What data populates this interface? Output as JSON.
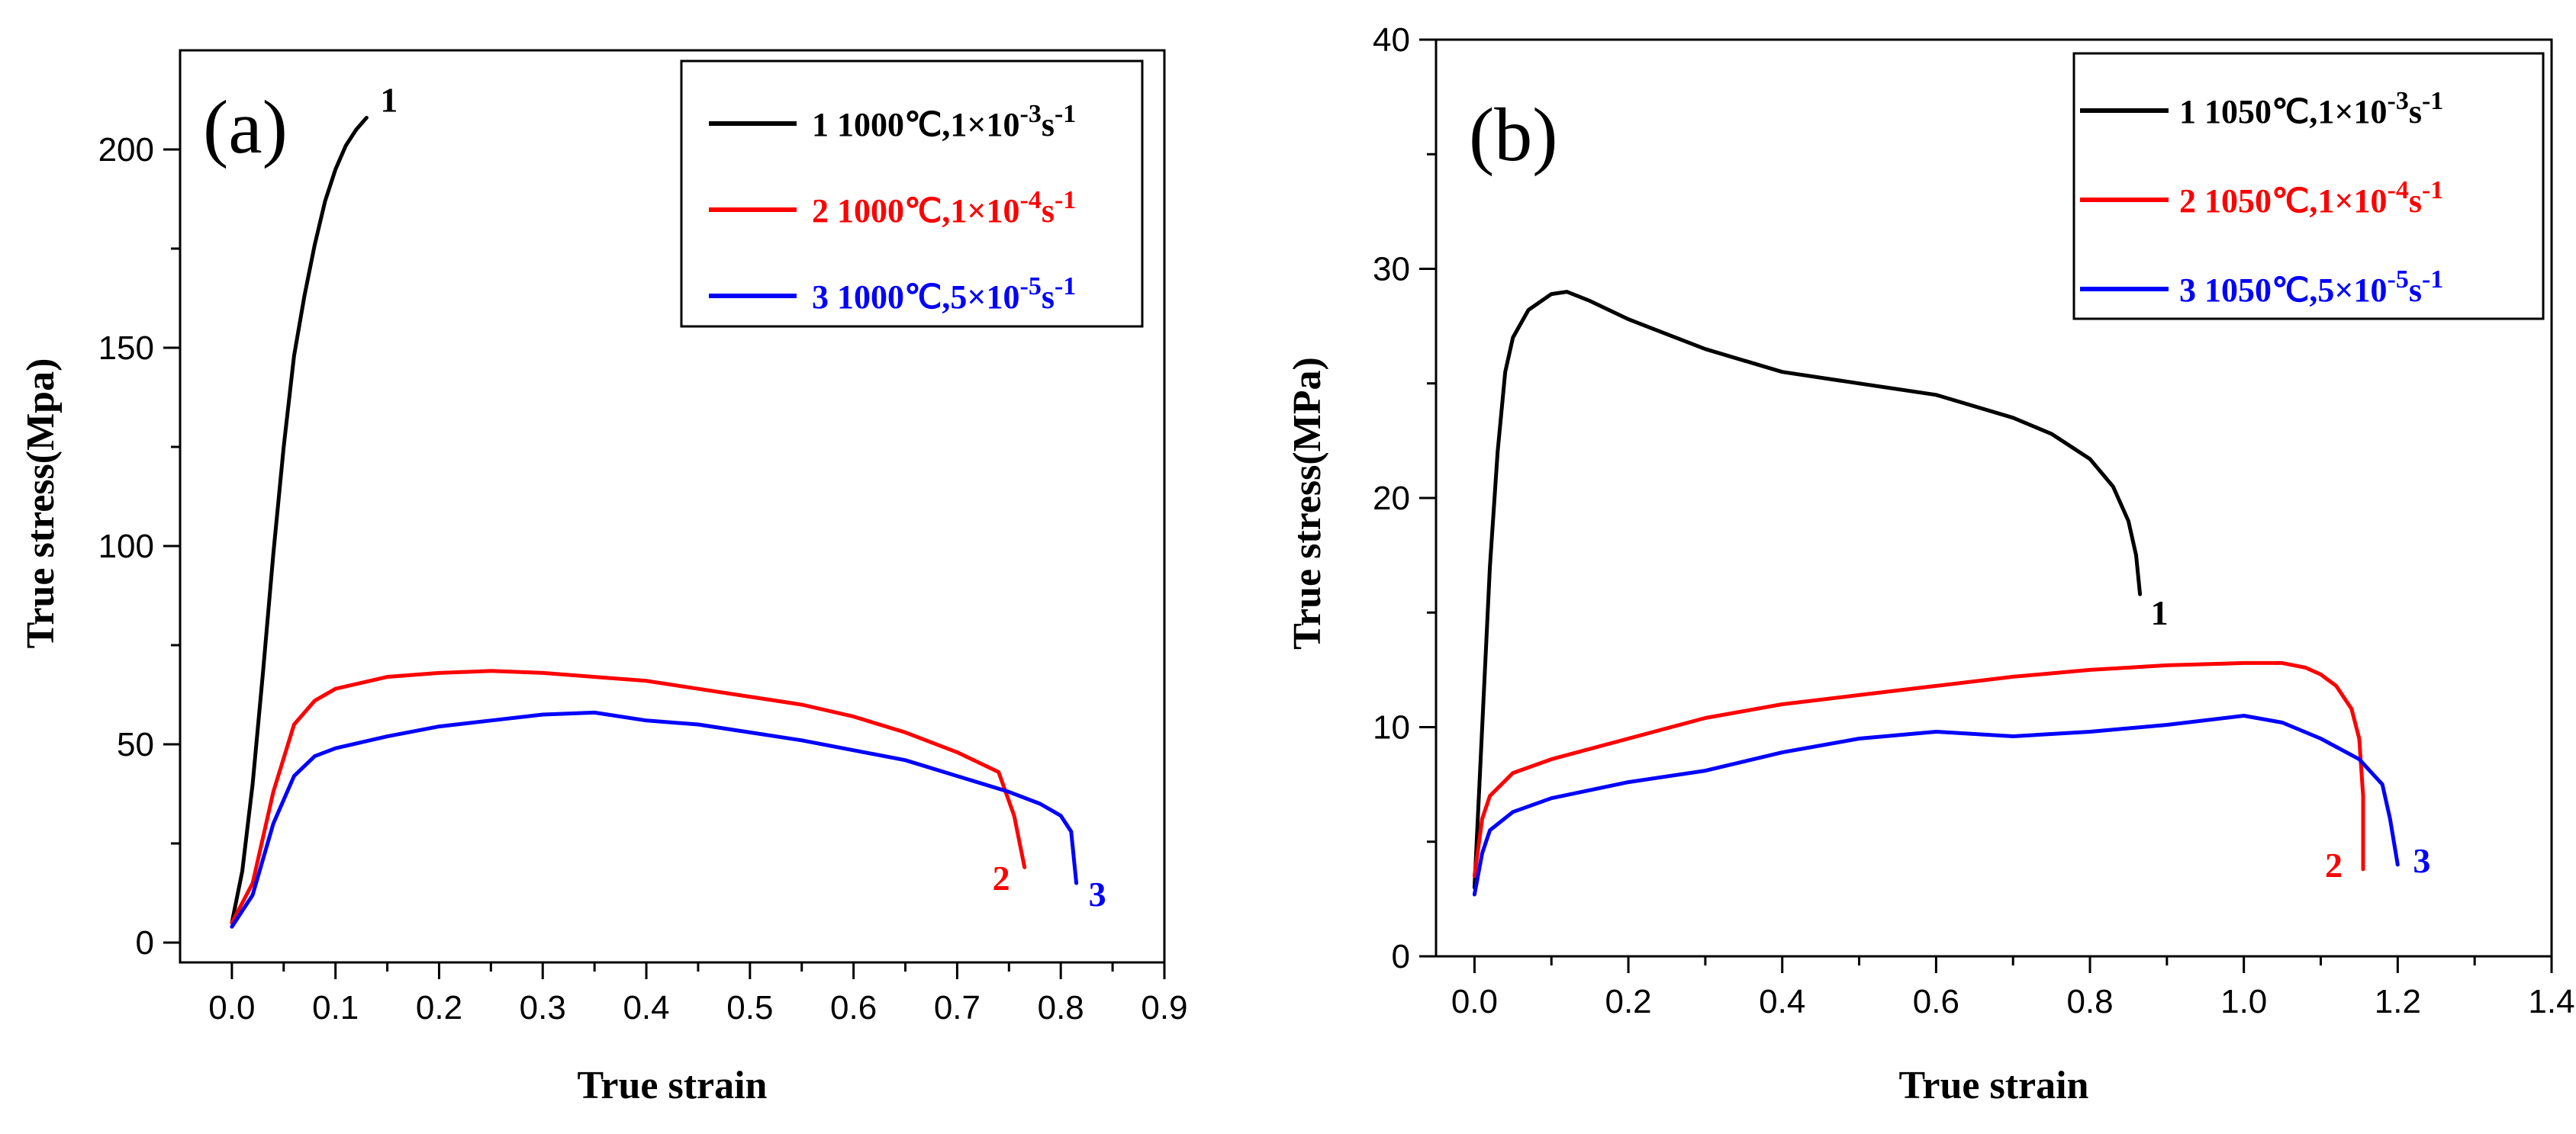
{
  "chart_data": [
    {
      "type": "line",
      "panel_label": "(a)",
      "xlabel": "True strain",
      "ylabel": "True stress(Mpa)",
      "xlim": [
        -0.05,
        0.9
      ],
      "ylim": [
        -5,
        225
      ],
      "x_ticks": [
        0.0,
        0.1,
        0.2,
        0.3,
        0.4,
        0.5,
        0.6,
        0.7,
        0.8,
        0.9
      ],
      "x_tick_labels": [
        "0.0",
        "0.1",
        "0.2",
        "0.3",
        "0.4",
        "0.5",
        "0.6",
        "0.7",
        "0.8",
        "0.9"
      ],
      "y_ticks": [
        0,
        50,
        100,
        150,
        200
      ],
      "y_tick_labels": [
        "0",
        "50",
        "100",
        "150",
        "200"
      ],
      "legend_position": "top-right",
      "series": [
        {
          "name": "1 1000℃,1×10-3s-1",
          "legend_prefix": "1 1000℃,1×10",
          "legend_exp": "-3",
          "legend_mid": "s",
          "legend_suffix": "-1",
          "end_label": "1",
          "color": "#000000",
          "x": [
            0.0,
            0.01,
            0.02,
            0.03,
            0.04,
            0.05,
            0.06,
            0.07,
            0.08,
            0.09,
            0.1,
            0.11,
            0.12,
            0.13
          ],
          "y": [
            5,
            18,
            40,
            68,
            98,
            125,
            148,
            163,
            176,
            187,
            195,
            201,
            205,
            208
          ]
        },
        {
          "name": "2 1000℃,1×10-4s-1",
          "legend_prefix": "2 1000℃,1×10",
          "legend_exp": "-4",
          "legend_mid": "s",
          "legend_suffix": "-1",
          "end_label": "2",
          "color": "#ff0000",
          "x": [
            0.0,
            0.02,
            0.04,
            0.06,
            0.08,
            0.1,
            0.15,
            0.2,
            0.25,
            0.3,
            0.35,
            0.4,
            0.45,
            0.5,
            0.55,
            0.6,
            0.65,
            0.7,
            0.74,
            0.755,
            0.765
          ],
          "y": [
            5,
            15,
            38,
            55,
            61,
            64,
            67,
            68,
            68.5,
            68,
            67,
            66,
            64,
            62,
            60,
            57,
            53,
            48,
            43,
            32,
            19
          ]
        },
        {
          "name": "3 1000℃,5×10-5s-1",
          "legend_prefix": "3 1000℃,5×10",
          "legend_exp": "-5",
          "legend_mid": "s",
          "legend_suffix": "-1",
          "end_label": "3",
          "color": "#0000ff",
          "x": [
            0.0,
            0.02,
            0.04,
            0.06,
            0.08,
            0.1,
            0.15,
            0.2,
            0.25,
            0.3,
            0.35,
            0.4,
            0.45,
            0.5,
            0.55,
            0.6,
            0.65,
            0.7,
            0.75,
            0.78,
            0.8,
            0.81,
            0.815
          ],
          "y": [
            4,
            12,
            30,
            42,
            47,
            49,
            52,
            54.5,
            56,
            57.5,
            58,
            56,
            55,
            53,
            51,
            48.5,
            46,
            42,
            38,
            35,
            32,
            28,
            15
          ]
        }
      ]
    },
    {
      "type": "line",
      "panel_label": "(b)",
      "xlabel": "True strain",
      "ylabel": "True stress(MPa)",
      "xlim": [
        -0.05,
        1.4
      ],
      "ylim": [
        0,
        40
      ],
      "x_ticks": [
        0.0,
        0.2,
        0.4,
        0.6,
        0.8,
        1.0,
        1.2,
        1.4
      ],
      "x_tick_labels": [
        "0.0",
        "0.2",
        "0.4",
        "0.6",
        "0.8",
        "1.0",
        "1.2",
        "1.4"
      ],
      "y_ticks": [
        0,
        10,
        20,
        30,
        40
      ],
      "y_tick_labels": [
        "0",
        "10",
        "20",
        "30",
        "40"
      ],
      "legend_position": "top-right",
      "series": [
        {
          "name": "1 1050℃,1×10-3s-1",
          "legend_prefix": "1 1050℃,1×10",
          "legend_exp": "-3",
          "legend_mid": "s",
          "legend_suffix": "-1",
          "end_label": "1",
          "color": "#000000",
          "x": [
            0.0,
            0.01,
            0.02,
            0.03,
            0.04,
            0.05,
            0.07,
            0.1,
            0.12,
            0.15,
            0.2,
            0.3,
            0.4,
            0.5,
            0.6,
            0.7,
            0.75,
            0.8,
            0.83,
            0.85,
            0.86,
            0.865
          ],
          "y": [
            3,
            10,
            17,
            22,
            25.5,
            27,
            28.2,
            28.9,
            29,
            28.6,
            27.8,
            26.5,
            25.5,
            25,
            24.5,
            23.5,
            22.8,
            21.7,
            20.5,
            19,
            17.5,
            15.8
          ]
        },
        {
          "name": "2 1050℃,1×10-4s-1",
          "legend_prefix": "2 1050℃,1×10",
          "legend_exp": "-4",
          "legend_mid": "s",
          "legend_suffix": "-1",
          "end_label": "2",
          "color": "#ff0000",
          "x": [
            0.0,
            0.01,
            0.02,
            0.05,
            0.1,
            0.2,
            0.3,
            0.4,
            0.5,
            0.6,
            0.7,
            0.8,
            0.9,
            1.0,
            1.05,
            1.08,
            1.1,
            1.12,
            1.14,
            1.15,
            1.155,
            1.155
          ],
          "y": [
            3.5,
            6,
            7,
            8,
            8.6,
            9.5,
            10.4,
            11,
            11.4,
            11.8,
            12.2,
            12.5,
            12.7,
            12.8,
            12.8,
            12.6,
            12.3,
            11.8,
            10.8,
            9.5,
            7,
            3.8
          ]
        },
        {
          "name": "3 1050℃,5×10-5s-1",
          "legend_prefix": "3 1050℃,5×10",
          "legend_exp": "-5",
          "legend_mid": "s",
          "legend_suffix": "-1",
          "end_label": "3",
          "color": "#0000ff",
          "x": [
            0.0,
            0.01,
            0.02,
            0.05,
            0.1,
            0.2,
            0.3,
            0.4,
            0.5,
            0.6,
            0.7,
            0.8,
            0.9,
            1.0,
            1.05,
            1.1,
            1.15,
            1.18,
            1.19,
            1.2
          ],
          "y": [
            2.7,
            4.5,
            5.5,
            6.3,
            6.9,
            7.6,
            8.1,
            8.9,
            9.5,
            9.8,
            9.6,
            9.8,
            10.1,
            10.5,
            10.2,
            9.5,
            8.6,
            7.5,
            6,
            4
          ]
        }
      ]
    }
  ]
}
